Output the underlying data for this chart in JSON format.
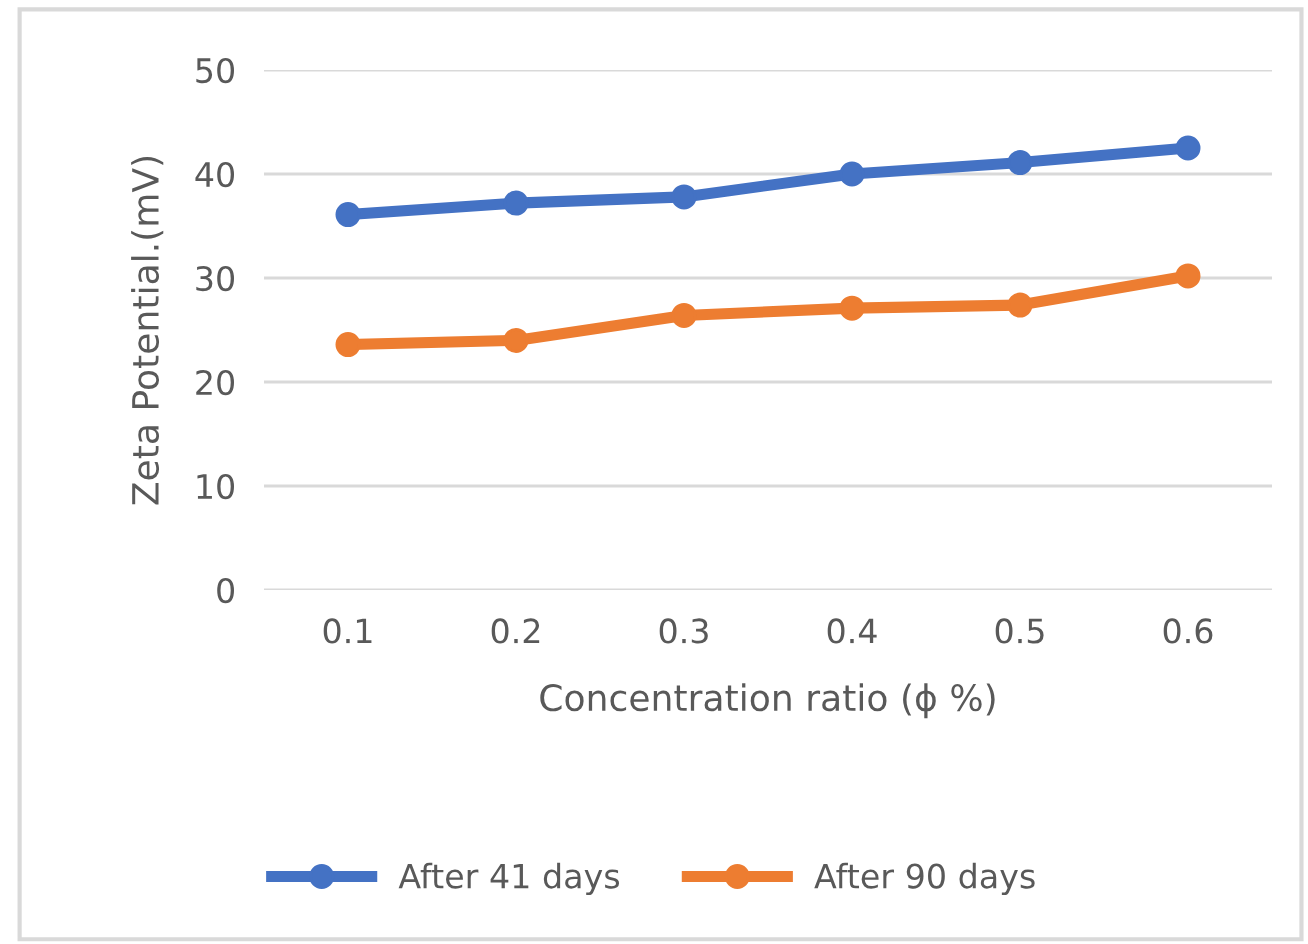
{
  "chart_data": {
    "type": "line",
    "xlabel": "Concentration ratio (ϕ %)",
    "ylabel": "Zeta Potential.(mV)",
    "categories": [
      "0.1",
      "0.2",
      "0.3",
      "0.4",
      "0.5",
      "0.6"
    ],
    "series": [
      {
        "name": "After 41 days",
        "color": "#4472c4",
        "values": [
          36.1,
          37.2,
          37.8,
          40.0,
          41.1,
          42.5
        ]
      },
      {
        "name": "After 90 days",
        "color": "#ed7d31",
        "values": [
          23.6,
          24.0,
          26.4,
          27.1,
          27.4,
          30.2
        ]
      }
    ],
    "ylim": [
      0,
      50
    ],
    "yticks": [
      0,
      10,
      20,
      30,
      40,
      50
    ],
    "grid": "y",
    "legend": "bottom",
    "marker": "circle",
    "line_style": "solid"
  }
}
